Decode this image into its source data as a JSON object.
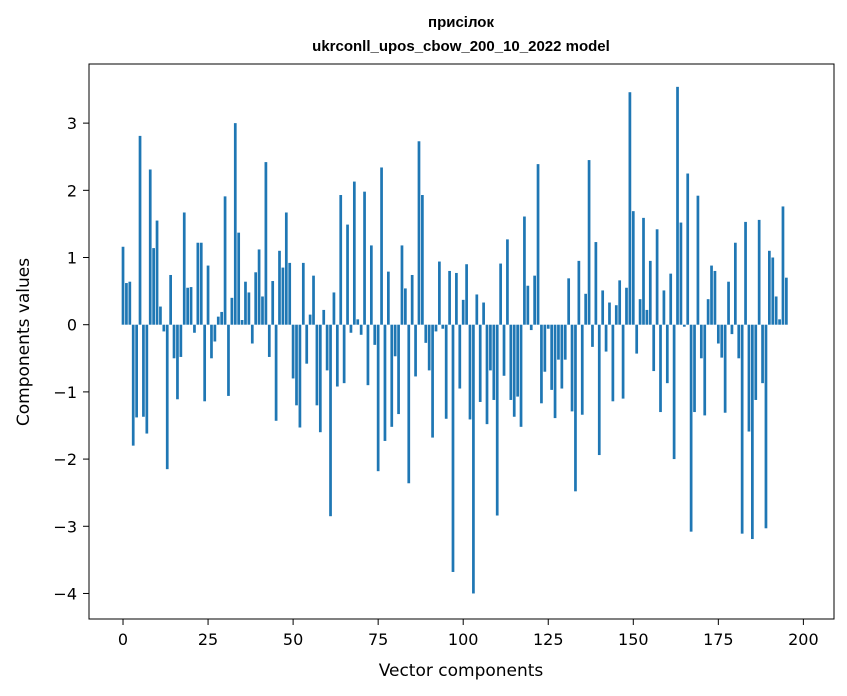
{
  "chart_data": {
    "type": "bar",
    "title_line1": "присілок",
    "title_line2": "ukrconll_upos_cbow_200_10_2022 model",
    "xlabel": "Vector components",
    "ylabel": "Components values",
    "xlim": [
      -10,
      209
    ],
    "ylim": [
      -4.38,
      3.88
    ],
    "xticks": [
      0,
      25,
      50,
      75,
      100,
      125,
      150,
      175,
      200
    ],
    "yticks": [
      -4,
      -3,
      -2,
      -1,
      0,
      1,
      2,
      3
    ],
    "ytick_labels": [
      "−4",
      "−3",
      "−2",
      "−1",
      "0",
      "1",
      "2",
      "3"
    ],
    "bar_color": "#1f77b4",
    "values": [
      1.16,
      0.62,
      0.64,
      -1.8,
      -1.38,
      2.81,
      -1.37,
      -1.62,
      2.31,
      1.14,
      1.55,
      0.27,
      -0.1,
      -2.15,
      0.74,
      -0.5,
      -1.11,
      -0.48,
      1.67,
      0.55,
      0.56,
      -0.12,
      1.22,
      1.22,
      -1.14,
      0.88,
      -0.5,
      -0.25,
      0.12,
      0.19,
      1.91,
      -1.06,
      0.4,
      3.0,
      1.37,
      0.07,
      0.64,
      0.48,
      -0.28,
      0.78,
      1.12,
      0.42,
      2.42,
      -0.48,
      0.65,
      -1.43,
      1.1,
      0.85,
      1.67,
      0.92,
      -0.8,
      -1.2,
      -1.53,
      0.92,
      -0.58,
      0.15,
      0.73,
      -1.2,
      -1.6,
      0.22,
      -0.68,
      -2.85,
      0.48,
      -0.92,
      1.93,
      -0.87,
      1.49,
      -0.12,
      2.13,
      0.08,
      -0.15,
      1.98,
      -0.9,
      1.18,
      -0.3,
      -2.18,
      2.34,
      -1.73,
      0.79,
      -1.52,
      -0.47,
      -1.33,
      1.18,
      0.54,
      -2.36,
      0.74,
      -0.77,
      2.73,
      1.93,
      -0.27,
      -0.68,
      -1.68,
      -0.1,
      0.94,
      -0.06,
      -1.4,
      0.8,
      -3.68,
      0.77,
      -0.95,
      0.37,
      0.9,
      -1.41,
      -4.0,
      0.45,
      -1.15,
      0.33,
      -1.48,
      -0.68,
      -1.12,
      -2.84,
      0.91,
      -0.76,
      1.27,
      -1.12,
      -1.37,
      -1.07,
      -1.52,
      1.61,
      0.58,
      -0.08,
      0.73,
      2.39,
      -1.17,
      -0.7,
      -0.06,
      -0.97,
      -1.39,
      -0.52,
      -0.95,
      -0.52,
      0.69,
      -1.29,
      -2.48,
      0.95,
      -1.34,
      0.46,
      2.45,
      -0.33,
      1.23,
      -1.94,
      0.51,
      -0.4,
      0.33,
      -1.14,
      0.29,
      0.66,
      -1.1,
      0.55,
      3.46,
      1.69,
      -0.43,
      0.38,
      1.59,
      0.22,
      0.95,
      -0.69,
      1.42,
      -1.3,
      0.51,
      -0.87,
      0.76,
      -2.0,
      3.54,
      1.52,
      -0.03,
      2.25,
      -3.08,
      -1.3,
      1.92,
      -0.5,
      -1.35,
      0.38,
      0.88,
      0.8,
      -0.28,
      -0.49,
      -1.31,
      0.64,
      -0.14,
      1.22,
      -0.5,
      -3.11,
      1.53,
      -1.59,
      -3.19,
      -1.12,
      1.56,
      -0.87,
      -3.03,
      1.1,
      1.0,
      0.42,
      0.08,
      1.76,
      0.7
    ]
  }
}
